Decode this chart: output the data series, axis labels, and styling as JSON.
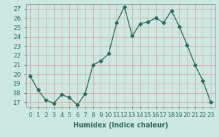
{
  "x": [
    0,
    1,
    2,
    3,
    4,
    5,
    6,
    7,
    8,
    9,
    10,
    11,
    12,
    13,
    14,
    15,
    16,
    17,
    18,
    19,
    20,
    21,
    22,
    23
  ],
  "y": [
    19.8,
    18.3,
    17.2,
    16.9,
    17.8,
    17.5,
    16.7,
    17.9,
    21.0,
    21.4,
    22.2,
    25.5,
    27.2,
    24.1,
    25.4,
    25.6,
    26.0,
    25.5,
    26.8,
    25.1,
    23.1,
    21.0,
    19.3,
    17.0
  ],
  "line_color": "#2e6b5e",
  "marker": "D",
  "marker_size": 2.5,
  "bg_color": "#cce8e0",
  "grid_color": "#d8a0a0",
  "xlabel": "Humidex (Indice chaleur)",
  "ylabel_ticks": [
    17,
    18,
    19,
    20,
    21,
    22,
    23,
    24,
    25,
    26,
    27
  ],
  "ylim": [
    16.5,
    27.5
  ],
  "xlim": [
    -0.5,
    23.5
  ],
  "xlabel_fontsize": 7,
  "tick_fontsize": 6.5
}
